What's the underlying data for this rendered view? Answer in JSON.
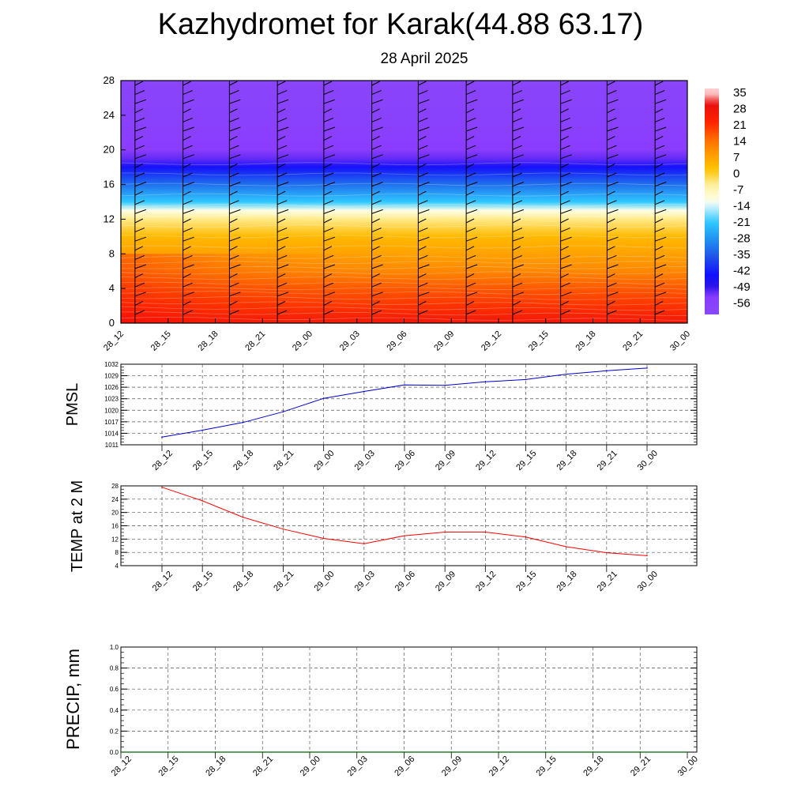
{
  "title": "Kazhydromet for Karak(44.88 63.17)",
  "subtitle": "28 April 2025",
  "colorbar": {
    "labels": [
      "35",
      "28",
      "21",
      "14",
      "7",
      "0",
      "-7",
      "-14",
      "-21",
      "-28",
      "-35",
      "-42",
      "-49",
      "-56"
    ]
  },
  "chart_data": [
    {
      "type": "heatmap",
      "title": "",
      "xlabel": "",
      "ylabel": "",
      "x_ticks": [
        "28_12",
        "28_15",
        "28_18",
        "28_21",
        "29_00",
        "29_03",
        "29_06",
        "29_09",
        "29_12",
        "29_15",
        "29_18",
        "29_21",
        "30_00"
      ],
      "y_ticks": [
        "0",
        "4",
        "8",
        "12",
        "16",
        "20",
        "24",
        "28"
      ],
      "ylim": [
        0,
        28
      ],
      "colorscale_range": [
        -56,
        35
      ],
      "temperature_by_level": [
        {
          "level": 0,
          "value": 27
        },
        {
          "level": 2,
          "value": 20
        },
        {
          "level": 4,
          "value": 16
        },
        {
          "level": 6,
          "value": 10
        },
        {
          "level": 8,
          "value": 6
        },
        {
          "level": 10,
          "value": 2
        },
        {
          "level": 12,
          "value": -6
        },
        {
          "level": 13,
          "value": -14
        },
        {
          "level": 14,
          "value": -24
        },
        {
          "level": 16,
          "value": -36
        },
        {
          "level": 18,
          "value": -49
        },
        {
          "level": 19,
          "value": -56
        },
        {
          "level": 20,
          "value": -58
        },
        {
          "level": 24,
          "value": -62
        },
        {
          "level": 28,
          "value": -64
        }
      ],
      "wind_barbs": true
    },
    {
      "type": "line",
      "ylabel": "PMSL",
      "ylim": [
        1011,
        1032
      ],
      "y_ticks": [
        "1011",
        "1014",
        "1017",
        "1020",
        "1023",
        "1026",
        "1029",
        "1032"
      ],
      "categories": [
        "28_12",
        "28_15",
        "28_18",
        "28_21",
        "29_00",
        "29_03",
        "29_06",
        "29_09",
        "29_12",
        "29_15",
        "29_18",
        "29_21",
        "30_00"
      ],
      "values": [
        1013.0,
        1014.8,
        1016.8,
        1019.6,
        1023.1,
        1024.9,
        1026.6,
        1026.5,
        1027.4,
        1028.0,
        1029.4,
        1030.3,
        1031.0
      ],
      "color": "#0000cc"
    },
    {
      "type": "line",
      "ylabel": "TEMP at 2 M",
      "ylim": [
        4,
        28
      ],
      "y_ticks": [
        "4",
        "8",
        "12",
        "16",
        "20",
        "24",
        "28"
      ],
      "categories": [
        "28_12",
        "28_15",
        "28_18",
        "28_21",
        "29_00",
        "29_03",
        "29_06",
        "29_09",
        "29_12",
        "29_15",
        "29_18",
        "29_21",
        "30_00"
      ],
      "values": [
        27.6,
        23.5,
        18.6,
        15.0,
        12.2,
        10.6,
        13.0,
        14.1,
        14.1,
        12.6,
        9.7,
        7.9,
        7.0
      ],
      "color": "#ff0000"
    },
    {
      "type": "line",
      "ylabel": "PRECIP, mm",
      "ylim": [
        0.0,
        1.0
      ],
      "y_ticks": [
        "0.0",
        "0.2",
        "0.4",
        "0.6",
        "0.8",
        "1.0"
      ],
      "categories": [
        "28_12",
        "28_15",
        "28_18",
        "28_21",
        "29_00",
        "29_03",
        "29_06",
        "29_09",
        "29_12",
        "29_15",
        "29_18",
        "29_21",
        "30_00"
      ],
      "values": [
        0.0,
        0.0,
        0.0,
        0.0,
        0.0,
        0.0,
        0.0,
        0.0,
        0.0,
        0.0,
        0.0,
        0.0,
        0.0
      ],
      "color": "#006400"
    }
  ]
}
